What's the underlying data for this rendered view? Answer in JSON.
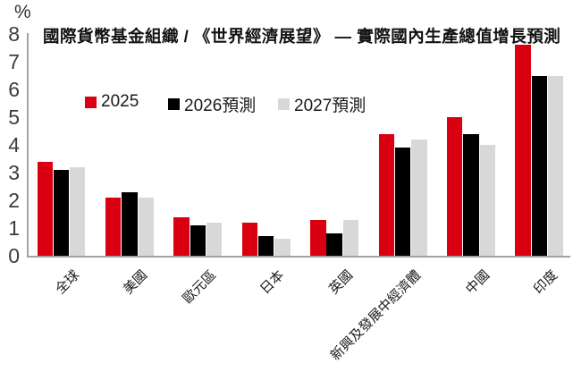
{
  "chart": {
    "unit_label": "%",
    "title": "國際貨幣基金組織 / 《世界經濟展望》 — 實際國內生產總值增長預測"
  },
  "chart_data": {
    "type": "bar",
    "title": "國際貨幣基金組織 / 《世界經濟展望》 — 實際國內生產總值增長預測",
    "xlabel": "",
    "ylabel": "%",
    "ylim": [
      0,
      8
    ],
    "yticks": [
      0,
      1,
      2,
      3,
      4,
      5,
      6,
      7,
      8
    ],
    "grid": false,
    "legend_position": "top-left-inside",
    "categories": [
      "全球",
      "美國",
      "歐元區",
      "日本",
      "英國",
      "新興及發展中經濟體",
      "中國",
      "印度"
    ],
    "series": [
      {
        "name": "2025",
        "color": "#db0011",
        "values": [
          3.4,
          2.1,
          1.4,
          1.2,
          1.3,
          4.4,
          5.0,
          7.6
        ]
      },
      {
        "name": "2026預測",
        "color": "#000000",
        "values": [
          3.1,
          2.3,
          1.1,
          0.7,
          0.8,
          3.9,
          4.4,
          6.5
        ]
      },
      {
        "name": "2027預測",
        "color": "#d8d8d8",
        "values": [
          3.2,
          2.1,
          1.2,
          0.6,
          1.3,
          4.2,
          4.0,
          6.5
        ]
      }
    ],
    "colors": {
      "accent_red": "#db0011",
      "bar_black": "#000000",
      "bar_gray": "#d8d8d8",
      "axis_gray": "#a3a3a3"
    }
  }
}
